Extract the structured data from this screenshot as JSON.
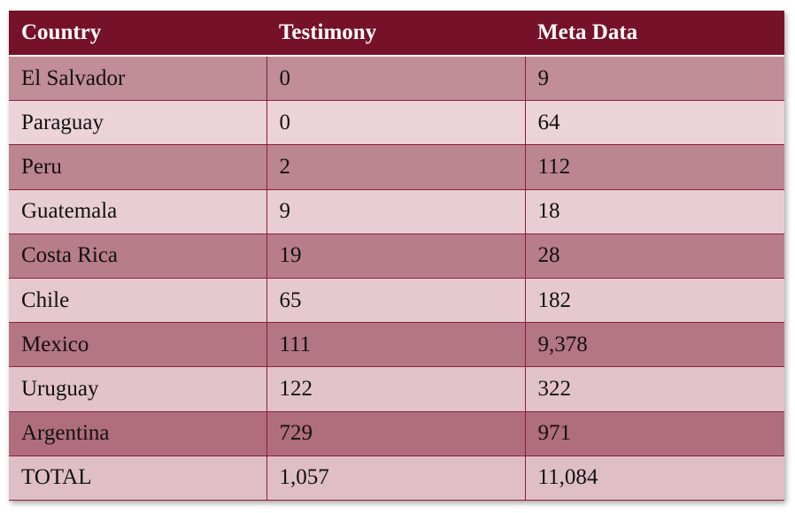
{
  "table": {
    "headers": [
      "Country",
      "Testimony",
      "Meta Data"
    ],
    "rows": [
      [
        "El Salvador",
        "0",
        "9"
      ],
      [
        "Paraguay",
        "0",
        "64"
      ],
      [
        "Peru",
        "2",
        "112"
      ],
      [
        "Guatemala",
        "9",
        "18"
      ],
      [
        "Costa Rica",
        "19",
        "28"
      ],
      [
        "Chile",
        "65",
        "182"
      ],
      [
        "Mexico",
        "111",
        "9,378"
      ],
      [
        "Uruguay",
        "122",
        "322"
      ],
      [
        "Argentina",
        "729",
        "971"
      ],
      [
        "TOTAL",
        "1,057",
        "11,084"
      ]
    ]
  },
  "colors": {
    "header_bg": "#76112a",
    "row_dark": "#c08d99",
    "row_light": "#ebd3d8",
    "border": "#8c1d3e"
  }
}
